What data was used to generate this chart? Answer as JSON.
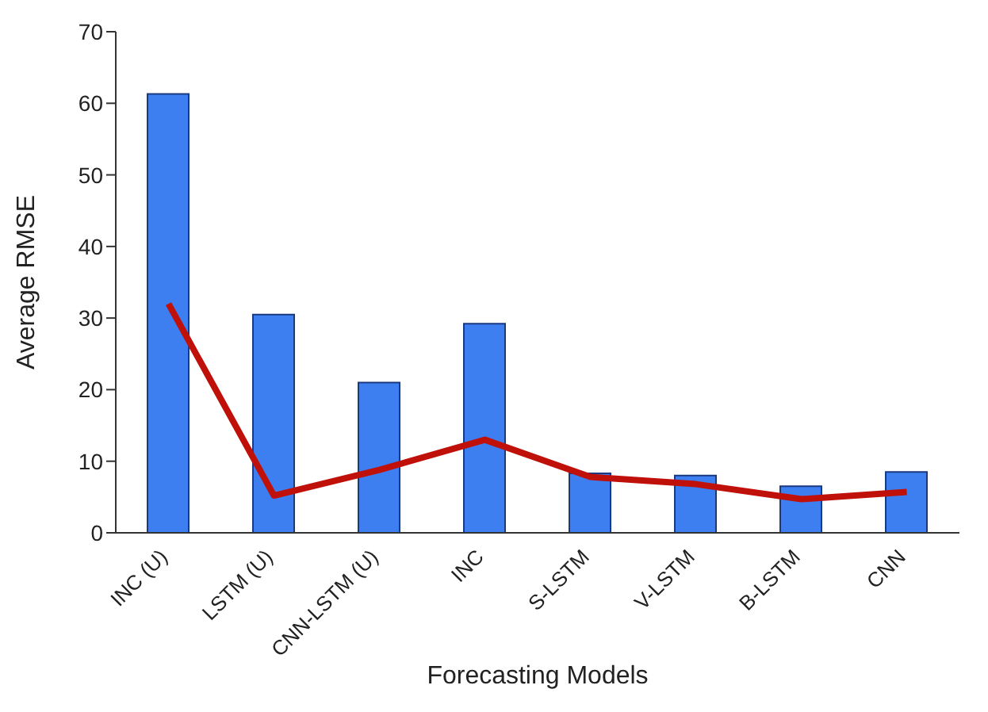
{
  "chart_data": {
    "type": "bar",
    "xlabel": "Forecasting Models",
    "ylabel": "Average RMSE",
    "categories": [
      "INC (U)",
      "LSTM (U)",
      "CNN-LSTM (U)",
      "INC",
      "S-LSTM",
      "V-LSTM",
      "B-LSTM",
      "CNN"
    ],
    "series": [
      {
        "color": "#3d7ff0",
        "values": [
          61.3,
          30.5,
          21,
          29.2,
          8.3,
          8,
          6.5,
          8.5
        ]
      },
      {
        "type": "line",
        "color": "#c0100a",
        "values": [
          32,
          5.2,
          8.8,
          13,
          7.8,
          6.8,
          4.7,
          5.7
        ]
      }
    ],
    "ylim": [
      0,
      70
    ],
    "yticks": [
      0,
      10,
      20,
      30,
      40,
      50,
      60,
      70
    ],
    "grid": false,
    "legend": false,
    "marker": "none",
    "line_style": "solid"
  }
}
